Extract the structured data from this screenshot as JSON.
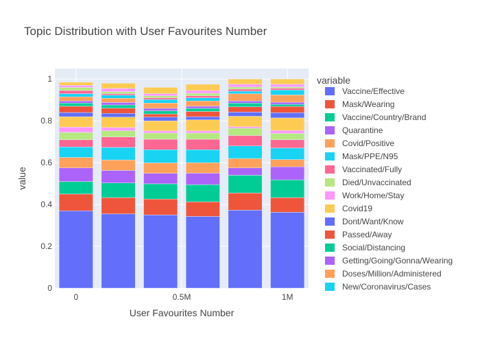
{
  "chart_data": {
    "type": "bar",
    "stacked": true,
    "title": "Topic Distribution with User Favourites Number",
    "xlabel": "User Favourites Number",
    "ylabel": "value",
    "ylim": [
      0,
      1.05
    ],
    "xlim": [
      -100000,
      1100000
    ],
    "xticks": [
      0,
      500000,
      1000000
    ],
    "xtick_labels": [
      "0",
      "0.5M",
      "1M"
    ],
    "yticks": [
      0,
      0.2,
      0.4,
      0.6,
      0.8,
      1
    ],
    "ytick_labels": [
      "0",
      "0.2",
      "0.4",
      "0.6",
      "0.8",
      "1"
    ],
    "grid": true,
    "legend_title": "variable",
    "legend_position": "right",
    "x": [
      0,
      200000,
      400000,
      600000,
      800000,
      1000000
    ],
    "series": [
      {
        "name": "Vaccine/Effective",
        "color": "#636efa",
        "values": [
          0.37,
          0.355,
          0.35,
          0.343,
          0.373,
          0.363
        ]
      },
      {
        "name": "Mask/Wearing",
        "color": "#ef553b",
        "values": [
          0.08,
          0.078,
          0.076,
          0.07,
          0.082,
          0.07
        ]
      },
      {
        "name": "Vaccine/Country/Brand",
        "color": "#00cc96",
        "values": [
          0.06,
          0.07,
          0.073,
          0.082,
          0.085,
          0.085
        ]
      },
      {
        "name": "Quarantine",
        "color": "#ab63fa",
        "values": [
          0.065,
          0.06,
          0.05,
          0.055,
          0.035,
          0.062
        ]
      },
      {
        "name": "Covid/Positive",
        "color": "#ffa15a",
        "values": [
          0.05,
          0.05,
          0.05,
          0.05,
          0.045,
          0.035
        ]
      },
      {
        "name": "Mask/PPE/N95",
        "color": "#19d3f3",
        "values": [
          0.05,
          0.06,
          0.063,
          0.062,
          0.06,
          0.055
        ]
      },
      {
        "name": "Vaccinated/Fully",
        "color": "#ff6692",
        "values": [
          0.035,
          0.05,
          0.05,
          0.05,
          0.05,
          0.04
        ]
      },
      {
        "name": "Died/Unvaccinated",
        "color": "#b6e880",
        "values": [
          0.035,
          0.03,
          0.03,
          0.03,
          0.035,
          0.03
        ]
      },
      {
        "name": "Work/Home/Stay",
        "color": "#ff97ff",
        "values": [
          0.025,
          0.015,
          0.01,
          0.01,
          0.007,
          0.014
        ]
      },
      {
        "name": "Covid19",
        "color": "#fecb52",
        "values": [
          0.05,
          0.05,
          0.048,
          0.053,
          0.05,
          0.06
        ]
      },
      {
        "name": "Dont/Want/Know",
        "color": "#636efa",
        "values": [
          0.02,
          0.018,
          0.018,
          0.015,
          0.02,
          0.025
        ]
      },
      {
        "name": "Passed/Away",
        "color": "#ef553b",
        "values": [
          0.03,
          0.025,
          0.015,
          0.025,
          0.025,
          0.03
        ]
      },
      {
        "name": "Social/Distancing",
        "color": "#00cc96",
        "values": [
          0.015,
          0.015,
          0.015,
          0.015,
          0.018,
          0.01
        ]
      },
      {
        "name": "Getting/Going/Gonna/Wearing",
        "color": "#ab63fa",
        "values": [
          0.01,
          0.012,
          0.012,
          0.01,
          0.01,
          0.01
        ]
      },
      {
        "name": "Doses/Million/Administered",
        "color": "#ffa15a",
        "values": [
          0.02,
          0.02,
          0.025,
          0.025,
          0.035,
          0.035
        ]
      },
      {
        "name": "New/Coronavirus/Cases",
        "color": "#19d3f3",
        "values": [
          0.015,
          0.015,
          0.017,
          0.015,
          0.012,
          0.024
        ]
      },
      {
        "name": "",
        "color": "#ff6692",
        "values": [
          0.015,
          0.007,
          0.008,
          0.01,
          0.01,
          0.008
        ]
      },
      {
        "name": "",
        "color": "#b6e880",
        "values": [
          0.015,
          0.01,
          0.01,
          0.012,
          0.01,
          0.006
        ]
      },
      {
        "name": "",
        "color": "#ff97ff",
        "values": [
          0.01,
          0.015,
          0.01,
          0.013,
          0.013,
          0.013
        ]
      },
      {
        "name": "",
        "color": "#fecb52",
        "values": [
          0.015,
          0.025,
          0.03,
          0.03,
          0.025,
          0.025
        ]
      }
    ]
  }
}
